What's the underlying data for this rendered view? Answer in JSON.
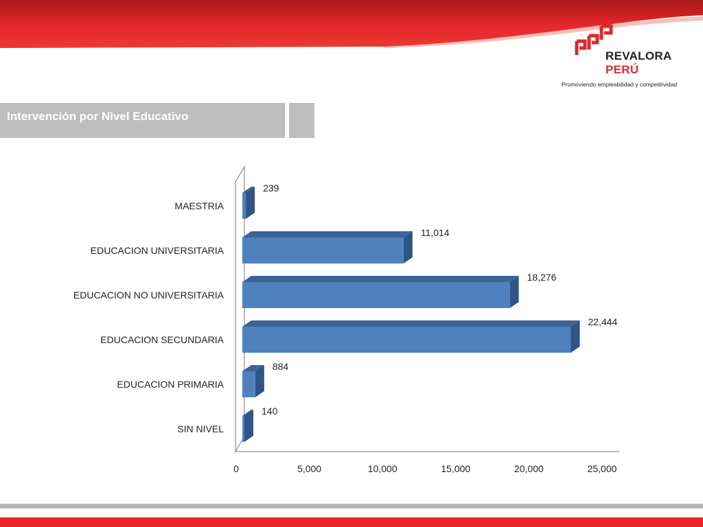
{
  "header": {
    "brand_line1": "REVALORA",
    "brand_line2": "PERÚ",
    "tagline": "Promoviendo empleabilidad y competitividad",
    "banner_color": "#e8262b"
  },
  "section": {
    "title": "Intervención por Nivel Educativo"
  },
  "chart_data": {
    "type": "bar",
    "orientation": "horizontal",
    "style": "3d",
    "categories": [
      "SIN NIVEL",
      "EDUCACION PRIMARIA",
      "EDUCACION SECUNDARIA",
      "EDUCACION NO UNIVERSITARIA",
      "EDUCACION UNIVERSITARIA",
      "MAESTRIA"
    ],
    "values": [
      140,
      884,
      22444,
      18276,
      11014,
      239
    ],
    "data_labels": [
      "140",
      "884",
      "22,444",
      "18,276",
      "11,014",
      "239"
    ],
    "xlim": [
      0,
      25000
    ],
    "xticks": [
      0,
      5000,
      10000,
      15000,
      20000,
      25000
    ],
    "xtick_labels": [
      "0",
      "5,000",
      "10,000",
      "15,000",
      "20,000",
      "25,000"
    ],
    "bar_color": "#4f81bd",
    "bar_top_color": "#3b6396",
    "bar_side_color": "#2f5485",
    "grid": false,
    "legend": "none",
    "title": "",
    "xlabel": "",
    "ylabel": ""
  }
}
